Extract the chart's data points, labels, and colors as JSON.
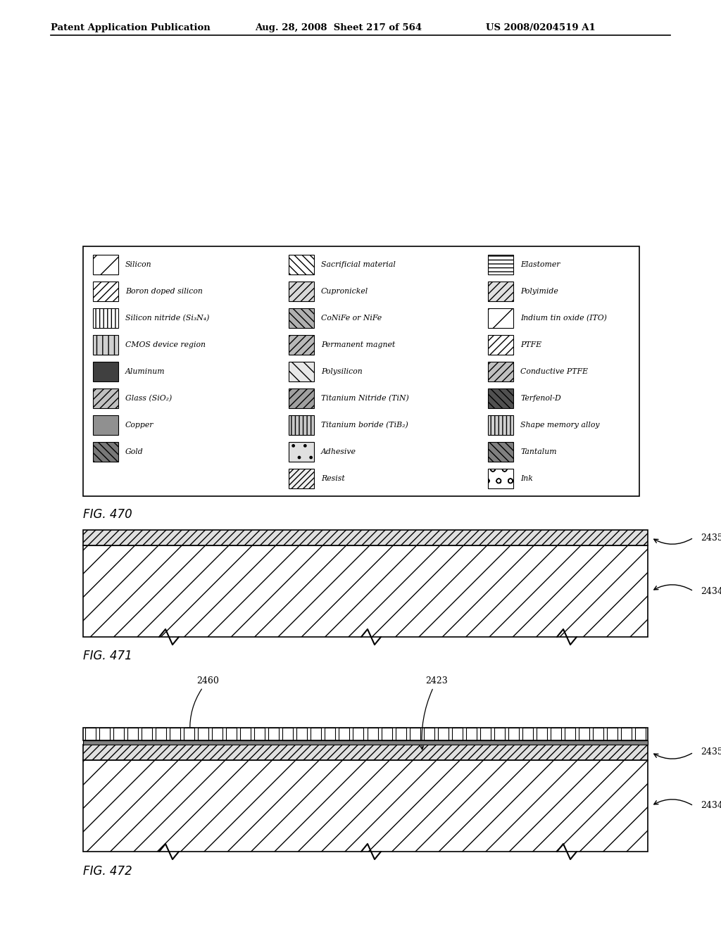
{
  "header_left": "Patent Application Publication",
  "header_mid": "Aug. 28, 2008  Sheet 217 of 564",
  "header_right": "US 2008/0204519 A1",
  "fig470_label": "FIG. 470",
  "fig471_label": "FIG. 471",
  "fig472_label": "FIG. 472",
  "legend_col1_labels": [
    "Silicon",
    "Boron doped silicon",
    "Silicon nitride (Si₃N₄)",
    "CMOS device region",
    "Aluminum",
    "Glass (SiO₂)",
    "Copper",
    "Gold"
  ],
  "legend_col1_hatches": [
    "/",
    "///",
    "|||",
    "||",
    "",
    "///",
    "",
    "\\\\\\"
  ],
  "legend_col1_fc": [
    "white",
    "white",
    "white",
    "#d0d0d0",
    "#404040",
    "#c0c0c0",
    "#909090",
    "#787878"
  ],
  "legend_col2_labels": [
    "Sacrificial material",
    "Cupronickel",
    "CoNiFe or NiFe",
    "Permanent magnet",
    "Polysilicon",
    "Titanium Nitride (TiN)",
    "Titanium boride (TiB₂)",
    "Adhesive",
    "Resist"
  ],
  "legend_col2_hatches": [
    "\\\\\\",
    "///",
    "\\\\\\",
    "///",
    "\\\\",
    "///",
    "|||",
    ".",
    "////"
  ],
  "legend_col2_fc": [
    "white",
    "#d8d8d8",
    "#b0b0b0",
    "#b8b8b8",
    "#e8e8e8",
    "#a0a0a0",
    "#c8c8c8",
    "#e0e0e0",
    "#f0f0f0"
  ],
  "legend_col3_labels": [
    "Elastomer",
    "Polyimide",
    "Indium tin oxide (ITO)",
    "PTFE",
    "Conductive PTFE",
    "Terfenol-D",
    "Shape memory alloy",
    "Tantalum",
    "Ink"
  ],
  "legend_col3_hatches": [
    "---",
    "///",
    "/",
    "///",
    "///",
    "\\\\\\",
    "|||",
    "\\\\\\",
    "o"
  ],
  "legend_col3_fc": [
    "white",
    "#e0e0e0",
    "white",
    "white",
    "#c0c0c0",
    "#505050",
    "#d0d0d0",
    "#808080",
    "white"
  ],
  "label_2435": "2435",
  "label_2434": "2434",
  "label_2460": "2460",
  "label_2423": "2423",
  "bg_color": "#ffffff"
}
